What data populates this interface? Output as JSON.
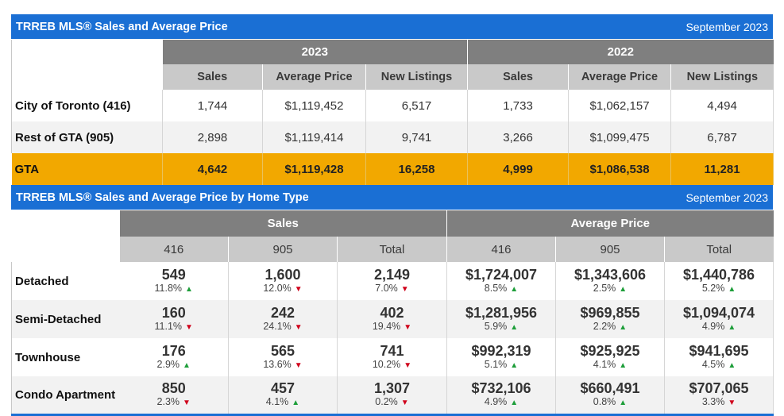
{
  "section1": {
    "title": "TRREB MLS® Sales and Average Price",
    "date": "September 2023",
    "groups": [
      "2023",
      "2022"
    ],
    "columns": [
      "Sales",
      "Average Price",
      "New Listings",
      "Sales",
      "Average Price",
      "New Listings"
    ],
    "rows": [
      {
        "label": "City of Toronto (416)",
        "values": [
          "1,744",
          "$1,119,452",
          "6,517",
          "1,733",
          "$1,062,157",
          "4,494"
        ]
      },
      {
        "label": "Rest of GTA (905)",
        "values": [
          "2,898",
          "$1,119,414",
          "9,741",
          "3,266",
          "$1,099,475",
          "6,787"
        ]
      },
      {
        "label": "GTA",
        "values": [
          "4,642",
          "$1,119,428",
          "16,258",
          "4,999",
          "$1,086,538",
          "11,281"
        ]
      }
    ]
  },
  "section2": {
    "title": "TRREB MLS® Sales and Average Price by Home Type",
    "date": "September 2023",
    "groups": [
      "Sales",
      "Average Price"
    ],
    "columns": [
      "416",
      "905",
      "Total",
      "416",
      "905",
      "Total"
    ],
    "rows": [
      {
        "label": "Detached",
        "cells": [
          {
            "value": "549",
            "pct": "11.8%",
            "dir": "up"
          },
          {
            "value": "1,600",
            "pct": "12.0%",
            "dir": "down"
          },
          {
            "value": "2,149",
            "pct": "7.0%",
            "dir": "down"
          },
          {
            "value": "$1,724,007",
            "pct": "8.5%",
            "dir": "up"
          },
          {
            "value": "$1,343,606",
            "pct": "2.5%",
            "dir": "up"
          },
          {
            "value": "$1,440,786",
            "pct": "5.2%",
            "dir": "up"
          }
        ]
      },
      {
        "label": "Semi-Detached",
        "cells": [
          {
            "value": "160",
            "pct": "11.1%",
            "dir": "down"
          },
          {
            "value": "242",
            "pct": "24.1%",
            "dir": "down"
          },
          {
            "value": "402",
            "pct": "19.4%",
            "dir": "down"
          },
          {
            "value": "$1,281,956",
            "pct": "5.9%",
            "dir": "up"
          },
          {
            "value": "$969,855",
            "pct": "2.2%",
            "dir": "up"
          },
          {
            "value": "$1,094,074",
            "pct": "4.9%",
            "dir": "up"
          }
        ]
      },
      {
        "label": "Townhouse",
        "cells": [
          {
            "value": "176",
            "pct": "2.9%",
            "dir": "up"
          },
          {
            "value": "565",
            "pct": "13.6%",
            "dir": "down"
          },
          {
            "value": "741",
            "pct": "10.2%",
            "dir": "down"
          },
          {
            "value": "$992,319",
            "pct": "5.1%",
            "dir": "up"
          },
          {
            "value": "$925,925",
            "pct": "4.1%",
            "dir": "up"
          },
          {
            "value": "$941,695",
            "pct": "4.5%",
            "dir": "up"
          }
        ]
      },
      {
        "label": "Condo Apartment",
        "cells": [
          {
            "value": "850",
            "pct": "2.3%",
            "dir": "down"
          },
          {
            "value": "457",
            "pct": "4.1%",
            "dir": "up"
          },
          {
            "value": "1,307",
            "pct": "0.2%",
            "dir": "down"
          },
          {
            "value": "$732,106",
            "pct": "4.9%",
            "dir": "up"
          },
          {
            "value": "$660,491",
            "pct": "0.8%",
            "dir": "up"
          },
          {
            "value": "$707,065",
            "pct": "3.3%",
            "dir": "down"
          }
        ]
      }
    ]
  },
  "colors": {
    "header_blue": "#1a6fd4",
    "gta_highlight": "#f2a800",
    "up_green": "#1e9e3a",
    "down_red": "#d0021b"
  },
  "icons": {
    "up": "triangle-up-icon",
    "down": "triangle-down-icon"
  }
}
